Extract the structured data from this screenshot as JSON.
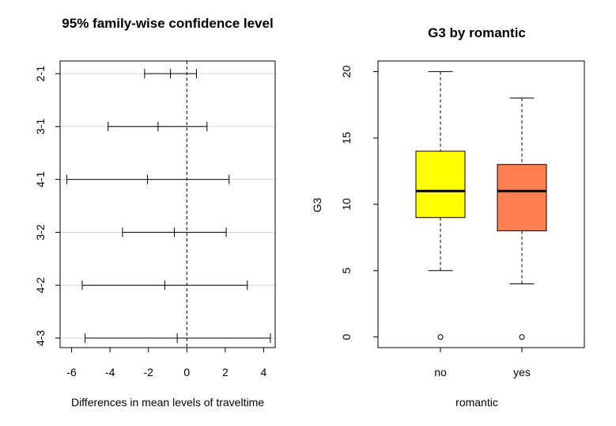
{
  "chart_data": [
    {
      "type": "interval",
      "title": "95% family-wise confidence level",
      "xlabel": "Differences in mean levels of traveltime",
      "ylabel": "",
      "xlim": [
        -6.6,
        4.6
      ],
      "xticks": [
        -6,
        -4,
        -2,
        0,
        2,
        4
      ],
      "reference_line": 0,
      "comparisons": [
        {
          "label": "2-1",
          "lwr": -2.2,
          "diff": -0.85,
          "upr": 0.5
        },
        {
          "label": "3-1",
          "lwr": -4.1,
          "diff": -1.5,
          "upr": 1.05
        },
        {
          "label": "4-1",
          "lwr": -6.25,
          "diff": -2.05,
          "upr": 2.2
        },
        {
          "label": "3-2",
          "lwr": -3.35,
          "diff": -0.65,
          "upr": 2.05
        },
        {
          "label": "4-2",
          "lwr": -5.45,
          "diff": -1.15,
          "upr": 3.15
        },
        {
          "label": "4-3",
          "lwr": -5.3,
          "diff": -0.5,
          "upr": 4.35
        }
      ]
    },
    {
      "type": "boxplot",
      "title": "G3 by romantic",
      "xlabel": "romantic",
      "ylabel": "G3",
      "ylim": [
        -0.8,
        20.8
      ],
      "yticks": [
        0,
        5,
        10,
        15,
        20
      ],
      "categories": [
        "no",
        "yes"
      ],
      "boxes": [
        {
          "category": "no",
          "min": 5,
          "q1": 9,
          "median": 11,
          "q3": 14,
          "max": 20,
          "outliers": [
            0
          ],
          "color": "#ffff00"
        },
        {
          "category": "yes",
          "min": 4,
          "q1": 8,
          "median": 11,
          "q3": 13,
          "max": 18,
          "outliers": [
            0
          ],
          "color": "#ff7f50"
        }
      ]
    }
  ]
}
